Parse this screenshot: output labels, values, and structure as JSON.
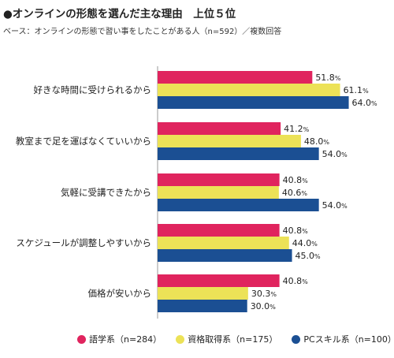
{
  "title": "●オンラインの形態を選んだ主な理由　上位５位",
  "subtitle": "ベース：オンラインの形態で習い事をしたことがある人（n=592）／複数回答",
  "chart_data": {
    "type": "bar",
    "orientation": "horizontal",
    "categories": [
      "好きな時間に受けられるから",
      "教室まで足を運ばなくていいから",
      "気軽に受講できたから",
      "スケジュールが調整しやすいから",
      "価格が安いから"
    ],
    "series": [
      {
        "name": "語学系（n=284）",
        "color": "#e0245e",
        "values": [
          51.8,
          41.2,
          40.8,
          40.8,
          40.8
        ]
      },
      {
        "name": "資格取得系（n=175）",
        "color": "#ece257",
        "values": [
          61.1,
          48.0,
          40.6,
          44.0,
          30.3
        ]
      },
      {
        "name": "PCスキル系（n=100）",
        "color": "#1b4f93",
        "values": [
          64.0,
          54.0,
          54.0,
          45.0,
          30.0
        ]
      }
    ],
    "value_unit": "%",
    "xlim": [
      0,
      100
    ],
    "grid": false,
    "legend_position": "bottom"
  }
}
